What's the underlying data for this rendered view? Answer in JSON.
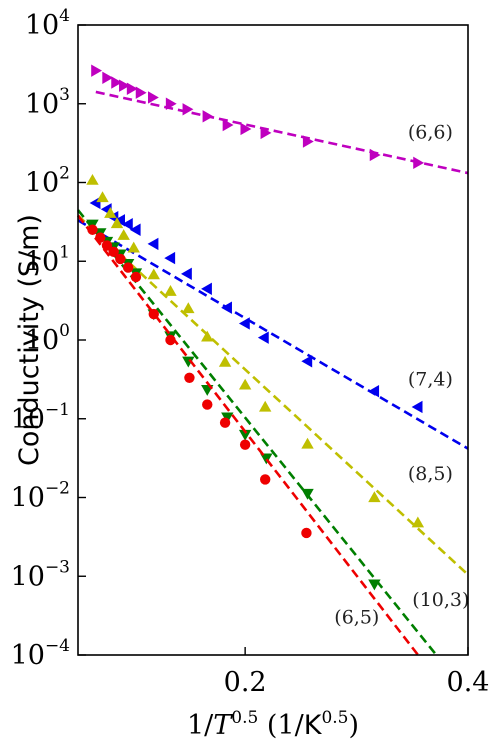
{
  "chart_data": {
    "type": "scatter",
    "xlabel": "1/T^0.5 (1/K^0.5)",
    "ylabel": "Conductivity (S/m)",
    "xlim": [
      0.05,
      0.4
    ],
    "ylim": [
      -4,
      4
    ],
    "yscale": "log",
    "grid": false,
    "x_ticks": [
      {
        "value": 0.2,
        "label": "0.2"
      },
      {
        "value": 0.4,
        "label": "0.4"
      }
    ],
    "y_ticks": [
      {
        "value": -4,
        "base": "10",
        "exp": "−4"
      },
      {
        "value": -3,
        "base": "10",
        "exp": "−3"
      },
      {
        "value": -2,
        "base": "10",
        "exp": "−2"
      },
      {
        "value": -1,
        "base": "10",
        "exp": "−1"
      },
      {
        "value": 0,
        "base": "10",
        "exp": "0"
      },
      {
        "value": 1,
        "base": "10",
        "exp": "1"
      },
      {
        "value": 2,
        "base": "10",
        "exp": "2"
      },
      {
        "value": 3,
        "base": "10",
        "exp": "3"
      },
      {
        "value": 4,
        "base": "10",
        "exp": "4"
      }
    ],
    "series": [
      {
        "name": "(6,6)",
        "color": "#bf00bf",
        "marker": "triangle-right",
        "x": [
          0.066,
          0.076,
          0.084,
          0.091,
          0.098,
          0.106,
          0.117,
          0.133,
          0.148,
          0.166,
          0.184,
          0.2,
          0.218,
          0.256,
          0.316,
          0.355
        ],
        "y": [
          3.42,
          3.33,
          3.27,
          3.23,
          3.19,
          3.14,
          3.08,
          3.0,
          2.93,
          2.84,
          2.73,
          2.68,
          2.63,
          2.52,
          2.35,
          2.25
        ],
        "fit": {
          "x": [
            0.066,
            0.4
          ],
          "y": [
            3.15,
            2.12
          ]
        }
      },
      {
        "name": "(7,4)",
        "color": "#0000ee",
        "marker": "triangle-left",
        "x": [
          0.066,
          0.076,
          0.082,
          0.088,
          0.095,
          0.102,
          0.118,
          0.133,
          0.148,
          0.166,
          0.184,
          0.2,
          0.217,
          0.256,
          0.316,
          0.355
        ],
        "y": [
          1.74,
          1.66,
          1.56,
          1.52,
          1.47,
          1.4,
          1.22,
          1.04,
          0.84,
          0.65,
          0.41,
          0.21,
          0.03,
          -0.27,
          -0.65,
          -0.85
        ],
        "fit": {
          "x": [
            0.05,
            0.4
          ],
          "y": [
            1.52,
            -1.38
          ]
        }
      },
      {
        "name": "(8,5)",
        "color": "#bfbf00",
        "marker": "triangle-up",
        "x": [
          0.063,
          0.072,
          0.079,
          0.085,
          0.091,
          0.1,
          0.118,
          0.133,
          0.149,
          0.166,
          0.182,
          0.2,
          0.218,
          0.256,
          0.316,
          0.355
        ],
        "y": [
          2.03,
          1.81,
          1.61,
          1.48,
          1.33,
          1.17,
          0.83,
          0.62,
          0.4,
          0.04,
          -0.28,
          -0.57,
          -0.85,
          -1.32,
          -2.0,
          -2.32
        ],
        "fit": {
          "x": [
            0.05,
            0.4
          ],
          "y": [
            1.58,
            -2.98
          ]
        }
      },
      {
        "name": "(10,3)",
        "color": "#007f00",
        "marker": "triangle-down",
        "x": [
          0.063,
          0.07,
          0.076,
          0.082,
          0.088,
          0.095,
          0.102,
          0.118,
          0.133,
          0.149,
          0.166,
          0.184,
          0.2,
          0.219,
          0.256,
          0.316
        ],
        "y": [
          1.47,
          1.36,
          1.25,
          1.18,
          1.09,
          0.97,
          0.85,
          0.33,
          0.05,
          -0.27,
          -0.63,
          -0.98,
          -1.2,
          -1.5,
          -1.95,
          -3.1
        ],
        "fit": {
          "x": [
            0.05,
            0.4
          ],
          "y": [
            1.65,
            -4.5
          ]
        }
      },
      {
        "name": "(6,5)",
        "color": "#ee0000",
        "marker": "circle",
        "x": [
          0.063,
          0.07,
          0.076,
          0.082,
          0.088,
          0.095,
          0.102,
          0.118,
          0.133,
          0.15,
          0.166,
          0.182,
          0.2,
          0.218,
          0.255
        ],
        "y": [
          1.4,
          1.3,
          1.2,
          1.12,
          1.03,
          0.92,
          0.8,
          0.33,
          0.0,
          -0.48,
          -0.82,
          -1.05,
          -1.33,
          -1.77,
          -2.45
        ],
        "fit": {
          "x": [
            0.05,
            0.4
          ],
          "y": [
            1.58,
            -4.82
          ]
        }
      }
    ],
    "annotations": [
      {
        "text": "(6,6)",
        "x": 0.346,
        "y": 2.56
      },
      {
        "text": "(7,4)",
        "x": 0.346,
        "y": -0.58
      },
      {
        "text": "(8,5)",
        "x": 0.346,
        "y": -1.78
      },
      {
        "text": "(10,3)",
        "x": 0.35,
        "y": -3.38
      },
      {
        "text": "(6,5)",
        "x": 0.28,
        "y": -3.6
      }
    ]
  }
}
